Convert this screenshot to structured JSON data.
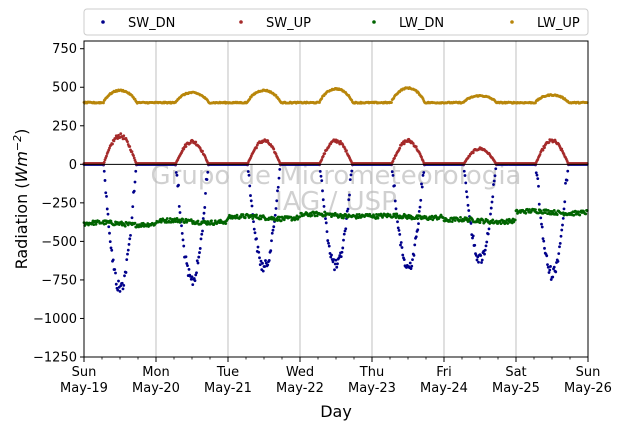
{
  "chart_data": {
    "type": "scatter",
    "xlabel": "Day",
    "ylabel": "Radiation (",
    "ylabel_unit": "Wm",
    "ylabel_exp": "−2",
    "ylabel_close": ")",
    "ylim": [
      -1250,
      800
    ],
    "yticks": [
      -1250,
      -1000,
      -750,
      -500,
      -250,
      0,
      250,
      500,
      750
    ],
    "ytick_labels": [
      "−1250",
      "−1000",
      "−750",
      "−500",
      "−250",
      "0",
      "250",
      "500",
      "750"
    ],
    "xlim": [
      0,
      7
    ],
    "xticks": [
      {
        "day": "Sun",
        "date": "May-19"
      },
      {
        "day": "Mon",
        "date": "May-20"
      },
      {
        "day": "Tue",
        "date": "May-21"
      },
      {
        "day": "Wed",
        "date": "May-22"
      },
      {
        "day": "Thu",
        "date": "May-23"
      },
      {
        "day": "Fri",
        "date": "May-24"
      },
      {
        "day": "Sat",
        "date": "May-25"
      },
      {
        "day": "Sun",
        "date": "May-26"
      }
    ],
    "grid": "vertical",
    "legend_position": "top",
    "watermark": [
      "Grupo de Micrometeorologia",
      "IAG / USP"
    ],
    "series": [
      {
        "name": "SW_DN",
        "color": "#00008b",
        "daily_peak": [
          -850,
          -800,
          -710,
          -700,
          -710,
          -650,
          -750
        ]
      },
      {
        "name": "SW_UP",
        "color": "#a52a2a",
        "daily_peak": [
          200,
          160,
          165,
          165,
          165,
          110,
          165
        ]
      },
      {
        "name": "LW_DN",
        "color": "#006400",
        "daily_level": [
          -385,
          -370,
          -345,
          -330,
          -340,
          -365,
          -310
        ]
      },
      {
        "name": "LW_UP",
        "color": "#b8860b",
        "daily_peak": [
          480,
          465,
          480,
          490,
          495,
          445,
          450
        ],
        "night_level": 400
      }
    ]
  }
}
